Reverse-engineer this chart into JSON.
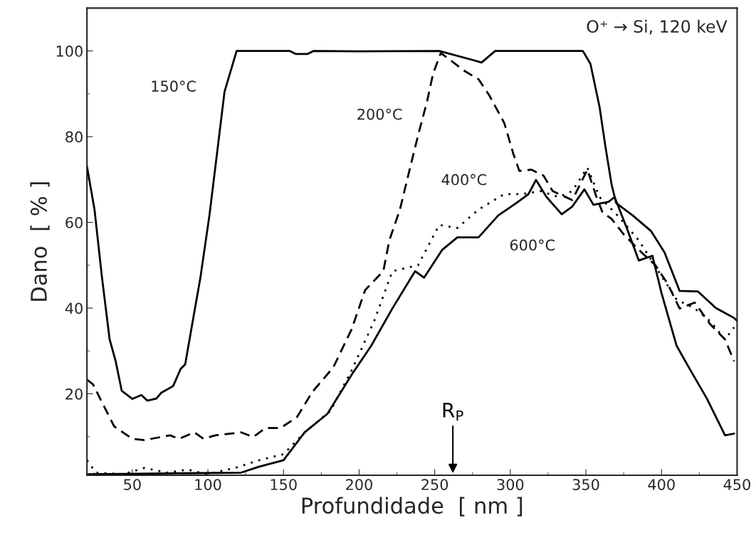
{
  "chart_data": {
    "type": "line",
    "xlabel": "Profundidade  [ nm ]",
    "ylabel": "Dano  [ % ]",
    "xlim": [
      20,
      450
    ],
    "ylim": [
      1,
      110
    ],
    "xticks": [
      50,
      100,
      150,
      200,
      250,
      300,
      350,
      400,
      450
    ],
    "yticks": [
      20,
      40,
      60,
      80,
      100
    ],
    "grid": false,
    "legend": false,
    "marker": "none",
    "series": [
      {
        "name": "150°C",
        "color": "#000000",
        "line_style": "solid",
        "x": [
          20,
          25,
          30,
          35,
          39,
          43,
          50,
          56,
          60,
          66,
          69,
          77,
          82,
          85,
          90,
          95,
          101,
          106,
          111,
          119,
          154,
          158,
          166,
          170,
          198,
          253,
          275,
          281,
          290,
          345,
          348,
          353,
          359,
          363,
          367,
          370,
          381,
          393,
          402,
          412,
          424,
          436,
          448,
          450
        ],
        "values": [
          73.1,
          63,
          47,
          32.7,
          27.6,
          20.7,
          18.8,
          19.7,
          18.4,
          18.9,
          20.2,
          21.8,
          25.8,
          26.9,
          37,
          47,
          61.6,
          76,
          90.5,
          100,
          100,
          99.3,
          99.3,
          100,
          99.9,
          100,
          97.9,
          97.3,
          100,
          100,
          100,
          97,
          87,
          77.5,
          68.8,
          64.5,
          61.6,
          58,
          53,
          44,
          43.9,
          40,
          37.7,
          37
        ]
      },
      {
        "name": "200°C",
        "color": "#000000",
        "line_style": "dashed",
        "x": [
          20,
          24,
          38,
          50,
          58,
          75,
          81,
          91,
          97,
          105,
          122,
          130,
          138,
          148,
          159,
          169,
          183,
          195,
          204,
          216,
          220,
          227,
          233,
          239,
          245,
          249,
          254,
          261,
          269,
          279,
          286,
          296,
          302,
          306,
          314,
          322,
          328,
          341,
          351,
          357,
          361,
          367,
          375,
          387,
          396,
          404,
          412,
          422,
          432,
          442,
          448
        ],
        "values": [
          23.3,
          22.2,
          12.4,
          9.5,
          9.2,
          10.3,
          9.5,
          11,
          9.5,
          10.3,
          11,
          9.9,
          12,
          12,
          14.6,
          20.4,
          26.2,
          35,
          44.2,
          48.6,
          55.8,
          63,
          71.7,
          80.3,
          88.3,
          94.8,
          99.5,
          97.7,
          95.5,
          93.4,
          89.7,
          83.2,
          76,
          72,
          72.3,
          70.9,
          67.3,
          65.2,
          72.3,
          65.9,
          62.3,
          60.8,
          57.2,
          52.9,
          50,
          45.7,
          39.9,
          41.3,
          36.3,
          32.7,
          27.6
        ]
      },
      {
        "name": "400°C",
        "color": "#000000",
        "line_style": "dotted",
        "x": [
          20,
          26,
          44,
          58,
          73,
          87,
          99,
          118,
          134,
          150,
          164,
          181,
          195,
          210,
          222,
          239,
          253,
          265,
          279,
          296,
          308,
          320,
          332,
          341,
          351,
          359,
          371,
          385,
          398,
          410,
          422,
          432,
          442,
          448
        ],
        "values": [
          4.5,
          1.6,
          1.2,
          2.7,
          1.6,
          2.3,
          1.2,
          2.7,
          4.5,
          5.9,
          11,
          16,
          25.4,
          37,
          48.6,
          50,
          59.4,
          58.7,
          63,
          66.6,
          66.6,
          67.3,
          65.9,
          67.3,
          72.8,
          65.9,
          61.6,
          55.8,
          48.6,
          42,
          39.9,
          37,
          32.7,
          35.5
        ]
      },
      {
        "name": "600°C",
        "color": "#000000",
        "line_style": "solid",
        "x": [
          20,
          122,
          134,
          150,
          164,
          179,
          195,
          208,
          222,
          237,
          243,
          255,
          265,
          279,
          292,
          304,
          312,
          317,
          324,
          334,
          341,
          349,
          355,
          365,
          369,
          377,
          385,
          394,
          400,
          410,
          418,
          430,
          442,
          448
        ],
        "values": [
          1.2,
          1.6,
          3,
          4.5,
          11,
          15.3,
          24.4,
          31.2,
          39.9,
          48.6,
          47.1,
          53.6,
          56.5,
          56.5,
          61.6,
          64.5,
          66.6,
          69.9,
          65.9,
          61.9,
          63.7,
          67.7,
          64.1,
          64.8,
          65.9,
          58.7,
          51.1,
          52.2,
          43.5,
          31.2,
          26.2,
          18.9,
          10.3,
          10.7
        ]
      }
    ],
    "ref_lines": [
      {
        "axis": "x",
        "value": 262,
        "label": "R$_{P}$"
      }
    ],
    "annotations": [
      "O⁺ → Si, 120 keV"
    ]
  }
}
